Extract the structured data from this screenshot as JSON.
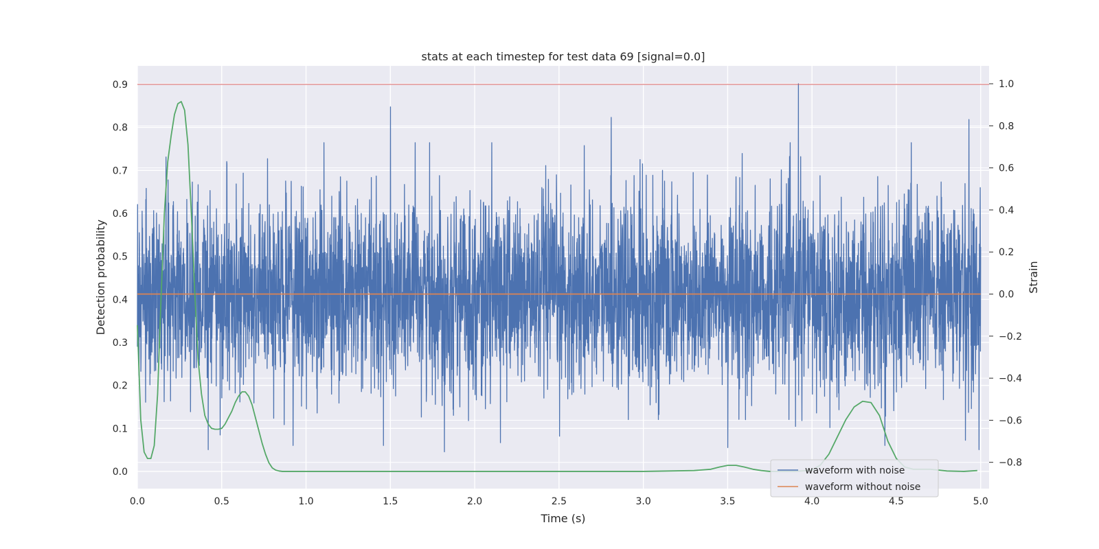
{
  "chart_data": {
    "type": "line",
    "title": "stats at each timestep for test data 69 [signal=0.0]",
    "xlabel": "Time (s)",
    "ylabel": "Detection probability",
    "ylabel_right": "Strain",
    "xlim": [
      0.0,
      5.05
    ],
    "ylim": [
      -0.04,
      0.943
    ],
    "ylim_right": [
      -0.925,
      1.085
    ],
    "grid": true,
    "x_ticks": [
      "0.0",
      "0.5",
      "1.0",
      "1.5",
      "2.0",
      "2.5",
      "3.0",
      "3.5",
      "4.0",
      "4.5",
      "5.0"
    ],
    "y_ticks": [
      "0.0",
      "0.1",
      "0.2",
      "0.3",
      "0.4",
      "0.5",
      "0.6",
      "0.7",
      "0.8",
      "0.9"
    ],
    "y_ticks_right": [
      "−0.8",
      "−0.6",
      "−0.4",
      "−0.2",
      "0.0",
      "0.2",
      "0.4",
      "0.6",
      "0.8",
      "1.0"
    ],
    "threshold": {
      "axis": "left",
      "y": 0.9,
      "color": "#d65f5f"
    },
    "series": [
      {
        "name": "waveform with noise",
        "axis": "right",
        "color": "#4c72b0",
        "type": "noise",
        "x_range": [
          0.0,
          5.0
        ],
        "mean": 0.0,
        "typical_amplitude": 0.45,
        "extremes": [
          [
            0.05,
            0.45
          ],
          [
            0.36,
            0.52
          ],
          [
            0.42,
            -0.74
          ],
          [
            0.53,
            0.63
          ],
          [
            1.5,
            -0.84
          ],
          [
            1.5,
            0.89
          ],
          [
            1.82,
            -0.75
          ],
          [
            2.04,
            0.03
          ],
          [
            2.81,
            0.84
          ],
          [
            3.5,
            -0.73
          ],
          [
            3.92,
            1.0
          ],
          [
            4.16,
            -0.55
          ],
          [
            4.93,
            0.83
          ],
          [
            4.99,
            -0.74
          ]
        ]
      },
      {
        "name": "waveform without noise",
        "axis": "right",
        "color": "#dd8452",
        "x": [
          0.0,
          5.0
        ],
        "y": [
          0.0,
          0.0
        ]
      },
      {
        "name": "",
        "axis": "left",
        "color": "#55a868",
        "x": [
          0.0,
          0.02,
          0.04,
          0.06,
          0.08,
          0.1,
          0.12,
          0.14,
          0.16,
          0.18,
          0.2,
          0.22,
          0.24,
          0.26,
          0.28,
          0.3,
          0.32,
          0.34,
          0.36,
          0.38,
          0.4,
          0.42,
          0.44,
          0.46,
          0.48,
          0.5,
          0.52,
          0.54,
          0.56,
          0.58,
          0.6,
          0.62,
          0.64,
          0.66,
          0.68,
          0.7,
          0.72,
          0.74,
          0.76,
          0.78,
          0.8,
          0.82,
          0.84,
          0.86,
          0.88,
          0.9,
          1.0,
          1.5,
          2.0,
          2.5,
          3.0,
          3.3,
          3.4,
          3.45,
          3.5,
          3.55,
          3.6,
          3.65,
          3.7,
          3.75,
          3.8,
          3.9,
          4.0,
          4.05,
          4.1,
          4.15,
          4.2,
          4.25,
          4.3,
          4.35,
          4.4,
          4.45,
          4.5,
          4.55,
          4.6,
          4.65,
          4.7,
          4.75,
          4.8,
          4.9,
          4.98
        ],
        "y": [
          0.34,
          0.12,
          0.045,
          0.03,
          0.03,
          0.06,
          0.18,
          0.4,
          0.6,
          0.72,
          0.78,
          0.83,
          0.855,
          0.86,
          0.84,
          0.76,
          0.6,
          0.42,
          0.26,
          0.18,
          0.13,
          0.11,
          0.1,
          0.098,
          0.098,
          0.1,
          0.11,
          0.125,
          0.14,
          0.16,
          0.175,
          0.185,
          0.185,
          0.175,
          0.155,
          0.125,
          0.095,
          0.065,
          0.04,
          0.02,
          0.008,
          0.003,
          0.001,
          0.0,
          0.0,
          0.0,
          0.0,
          0.0,
          0.0,
          0.0,
          0.0,
          0.002,
          0.005,
          0.01,
          0.014,
          0.014,
          0.01,
          0.005,
          0.002,
          0.0,
          0.0,
          0.0,
          0.003,
          0.015,
          0.04,
          0.08,
          0.12,
          0.15,
          0.163,
          0.16,
          0.13,
          0.07,
          0.03,
          0.01,
          0.005,
          0.005,
          0.005,
          0.003,
          0.001,
          0.0,
          0.002
        ]
      }
    ],
    "legend": {
      "position": "lower-right",
      "entries": [
        {
          "label": "waveform with noise",
          "color": "#4c72b0"
        },
        {
          "label": "waveform without noise",
          "color": "#dd8452"
        }
      ]
    }
  }
}
